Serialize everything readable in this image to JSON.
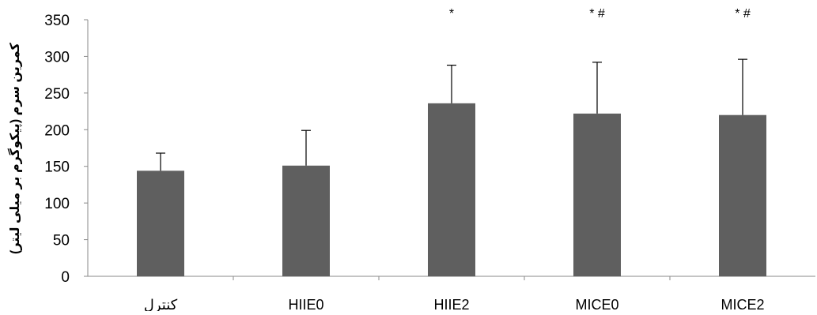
{
  "chart_data": {
    "type": "bar",
    "ylabel": "کمرین سرم (پیکوگرم بر میلی لیتر)",
    "ylim": [
      0,
      350
    ],
    "yticks": [
      0,
      50,
      100,
      150,
      200,
      250,
      300,
      350
    ],
    "grid": false,
    "categories": [
      "کنترل",
      "HIIE0",
      "HIIE2",
      "MICE0",
      "MICE2"
    ],
    "values": [
      144,
      151,
      236,
      222,
      220
    ],
    "error_upper": [
      24,
      48,
      52,
      70,
      76
    ],
    "annotations": [
      "",
      "",
      "*",
      "* #",
      "* #"
    ],
    "colors": {
      "bar": "#5f5f5f",
      "axis": "#8a8a8a",
      "error": "#000000"
    }
  }
}
